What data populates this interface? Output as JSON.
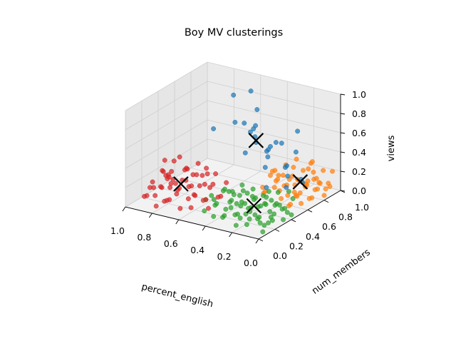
{
  "chart_data": {
    "type": "scatter",
    "projection": "3d",
    "title": "Boy MV clusterings",
    "xlabel": "percent_english",
    "ylabel": "num_members",
    "zlabel": "views",
    "xlim": [
      0.0,
      1.0
    ],
    "ylim": [
      0.0,
      1.0
    ],
    "zlim": [
      0.0,
      1.0
    ],
    "x_ticks": [
      "0.0",
      "0.2",
      "0.4",
      "0.6",
      "0.8",
      "1.0"
    ],
    "y_ticks": [
      "0.0",
      "0.2",
      "0.4",
      "0.6",
      "0.8",
      "1.0"
    ],
    "z_ticks": [
      "0.0",
      "0.2",
      "0.4",
      "0.6",
      "0.8",
      "1.0"
    ],
    "grid": true,
    "legend": "none",
    "series": [
      {
        "color": "#1f77b4",
        "points": [
          [
            0.55,
            0.8,
            0.95
          ],
          [
            0.35,
            0.55,
            0.95
          ],
          [
            0.3,
            0.45,
            0.85
          ],
          [
            0.65,
            0.75,
            0.9
          ],
          [
            0.2,
            0.8,
            0.65
          ],
          [
            0.4,
            0.55,
            0.7
          ],
          [
            0.7,
            0.85,
            0.55
          ],
          [
            0.5,
            0.75,
            0.6
          ],
          [
            0.3,
            0.7,
            0.55
          ],
          [
            0.6,
            0.8,
            0.6
          ],
          [
            0.8,
            0.75,
            0.5
          ],
          [
            0.25,
            0.55,
            0.6
          ],
          [
            0.45,
            0.7,
            0.5
          ],
          [
            0.35,
            0.85,
            0.45
          ],
          [
            0.15,
            0.7,
            0.5
          ],
          [
            0.55,
            0.85,
            0.45
          ],
          [
            0.2,
            0.65,
            0.35
          ],
          [
            0.5,
            0.65,
            0.4
          ],
          [
            0.4,
            0.75,
            0.4
          ],
          [
            0.3,
            0.6,
            0.45
          ],
          [
            0.15,
            0.6,
            0.3
          ],
          [
            0.45,
            0.85,
            0.35
          ],
          [
            0.25,
            0.75,
            0.3
          ],
          [
            0.35,
            0.65,
            0.3
          ],
          [
            0.1,
            0.7,
            0.2
          ],
          [
            0.1,
            0.5,
            0.25
          ],
          [
            0.25,
            0.5,
            0.2
          ],
          [
            0.05,
            0.6,
            0.3
          ]
        ]
      },
      {
        "color": "#ff7f0e",
        "points": [
          [
            0.05,
            0.9,
            0.05
          ],
          [
            0.05,
            0.8,
            0.1
          ],
          [
            0.1,
            0.85,
            0.05
          ],
          [
            0.15,
            0.95,
            0.1
          ],
          [
            0.05,
            0.7,
            0.05
          ],
          [
            0.1,
            0.75,
            0.15
          ],
          [
            0.2,
            0.9,
            0.05
          ],
          [
            0.0,
            0.65,
            0.1
          ],
          [
            0.05,
            0.6,
            0.05
          ],
          [
            0.15,
            0.7,
            0.05
          ],
          [
            0.2,
            0.8,
            0.15
          ],
          [
            0.1,
            0.95,
            0.2
          ],
          [
            0.25,
            0.85,
            0.05
          ],
          [
            0.0,
            0.85,
            0.15
          ],
          [
            0.05,
            0.95,
            0.05
          ],
          [
            0.15,
            0.6,
            0.1
          ],
          [
            0.2,
            0.7,
            0.2
          ],
          [
            0.25,
            0.75,
            0.1
          ],
          [
            0.1,
            0.65,
            0.25
          ],
          [
            0.0,
            0.75,
            0.2
          ],
          [
            0.3,
            0.9,
            0.1
          ],
          [
            0.05,
            0.55,
            0.15
          ],
          [
            0.15,
            0.85,
            0.25
          ],
          [
            0.25,
            0.95,
            0.15
          ],
          [
            0.3,
            0.8,
            0.05
          ],
          [
            0.2,
            0.6,
            0.05
          ],
          [
            0.1,
            0.55,
            0.05
          ],
          [
            0.0,
            0.9,
            0.25
          ],
          [
            0.05,
            0.75,
            0.3
          ],
          [
            0.35,
            0.9,
            0.2
          ],
          [
            0.2,
            1.0,
            0.05
          ],
          [
            0.3,
            0.7,
            0.15
          ],
          [
            0.15,
            0.5,
            0.2
          ],
          [
            0.1,
            0.8,
            0.35
          ],
          [
            0.25,
            0.65,
            0.25
          ],
          [
            0.35,
            0.8,
            0.1
          ],
          [
            0.4,
            0.95,
            0.05
          ],
          [
            0.0,
            0.6,
            0.3
          ],
          [
            0.2,
            0.75,
            0.3
          ],
          [
            0.15,
            0.9,
            0.3
          ],
          [
            0.05,
            0.45,
            0.1
          ],
          [
            0.3,
            0.55,
            0.1
          ],
          [
            0.4,
            0.85,
            0.15
          ],
          [
            0.1,
            0.6,
            0.15
          ],
          [
            0.25,
            0.55,
            0.3
          ],
          [
            0.0,
            0.8,
            0.05
          ],
          [
            0.35,
            0.65,
            0.05
          ],
          [
            0.45,
            0.9,
            0.1
          ],
          [
            0.2,
            0.85,
            0.1
          ],
          [
            0.05,
            0.65,
            0.2
          ],
          [
            0.15,
            0.75,
            0.05
          ],
          [
            0.3,
            0.95,
            0.25
          ],
          [
            0.1,
            0.9,
            0.1
          ],
          [
            0.25,
            0.6,
            0.15
          ],
          [
            0.4,
            0.7,
            0.05
          ]
        ]
      },
      {
        "color": "#2ca02c",
        "points": [
          [
            0.05,
            0.2,
            0.05
          ],
          [
            0.1,
            0.15,
            0.1
          ],
          [
            0.0,
            0.3,
            0.05
          ],
          [
            0.15,
            0.25,
            0.05
          ],
          [
            0.05,
            0.1,
            0.1
          ],
          [
            0.2,
            0.2,
            0.15
          ],
          [
            0.1,
            0.35,
            0.05
          ],
          [
            0.0,
            0.15,
            0.15
          ],
          [
            0.25,
            0.3,
            0.05
          ],
          [
            0.15,
            0.1,
            0.05
          ],
          [
            0.05,
            0.4,
            0.1
          ],
          [
            0.2,
            0.35,
            0.1
          ],
          [
            0.3,
            0.2,
            0.05
          ],
          [
            0.1,
            0.25,
            0.2
          ],
          [
            0.0,
            0.05,
            0.05
          ],
          [
            0.25,
            0.15,
            0.1
          ],
          [
            0.35,
            0.3,
            0.1
          ],
          [
            0.15,
            0.4,
            0.15
          ],
          [
            0.05,
            0.3,
            0.2
          ],
          [
            0.2,
            0.05,
            0.05
          ],
          [
            0.3,
            0.35,
            0.2
          ],
          [
            0.4,
            0.25,
            0.05
          ],
          [
            0.1,
            0.45,
            0.05
          ],
          [
            0.35,
            0.15,
            0.05
          ],
          [
            0.25,
            0.4,
            0.05
          ],
          [
            0.0,
            0.2,
            0.25
          ],
          [
            0.15,
            0.3,
            0.25
          ],
          [
            0.4,
            0.35,
            0.15
          ],
          [
            0.45,
            0.2,
            0.1
          ],
          [
            0.05,
            0.5,
            0.15
          ],
          [
            0.3,
            0.45,
            0.1
          ],
          [
            0.2,
            0.25,
            0.25
          ],
          [
            0.5,
            0.3,
            0.05
          ],
          [
            0.1,
            0.05,
            0.15
          ],
          [
            0.35,
            0.4,
            0.05
          ],
          [
            0.25,
            0.5,
            0.1
          ],
          [
            0.45,
            0.4,
            0.05
          ],
          [
            0.0,
            0.35,
            0.1
          ],
          [
            0.15,
            0.15,
            0.2
          ],
          [
            0.4,
            0.1,
            0.05
          ],
          [
            0.2,
            0.45,
            0.2
          ],
          [
            0.3,
            0.05,
            0.1
          ],
          [
            0.5,
            0.45,
            0.1
          ],
          [
            0.05,
            0.25,
            0.05
          ],
          [
            0.35,
            0.5,
            0.15
          ],
          [
            0.25,
            0.2,
            0.2
          ],
          [
            0.45,
            0.3,
            0.2
          ],
          [
            0.1,
            0.4,
            0.25
          ],
          [
            0.55,
            0.35,
            0.05
          ],
          [
            0.3,
            0.3,
            0.25
          ],
          [
            0.2,
            0.1,
            0.1
          ],
          [
            0.4,
            0.45,
            0.2
          ],
          [
            0.15,
            0.5,
            0.05
          ],
          [
            0.5,
            0.15,
            0.05
          ],
          [
            0.05,
            0.45,
            0.25
          ],
          [
            0.35,
            0.25,
            0.25
          ],
          [
            0.25,
            0.35,
            0.15
          ],
          [
            0.55,
            0.25,
            0.1
          ],
          [
            0.45,
            0.5,
            0.05
          ],
          [
            0.0,
            0.4,
            0.05
          ],
          [
            0.3,
            0.15,
            0.15
          ],
          [
            0.6,
            0.4,
            0.05
          ],
          [
            0.1,
            0.3,
            0.1
          ],
          [
            0.2,
            0.4,
            0.1
          ],
          [
            0.4,
            0.3,
            0.1
          ],
          [
            0.15,
            0.2,
            0.1
          ],
          [
            0.05,
            0.15,
            0.05
          ],
          [
            0.35,
            0.35,
            0.05
          ],
          [
            0.25,
            0.25,
            0.05
          ],
          [
            0.5,
            0.4,
            0.15
          ]
        ]
      },
      {
        "color": "#d62728",
        "points": [
          [
            0.9,
            0.2,
            0.05
          ],
          [
            0.85,
            0.3,
            0.1
          ],
          [
            0.95,
            0.35,
            0.05
          ],
          [
            0.8,
            0.15,
            0.05
          ],
          [
            0.75,
            0.25,
            0.15
          ],
          [
            0.9,
            0.4,
            0.2
          ],
          [
            0.7,
            0.35,
            0.05
          ],
          [
            0.85,
            0.45,
            0.1
          ],
          [
            0.65,
            0.2,
            0.1
          ],
          [
            0.8,
            0.4,
            0.25
          ],
          [
            0.95,
            0.25,
            0.15
          ],
          [
            0.7,
            0.45,
            0.2
          ],
          [
            0.6,
            0.3,
            0.05
          ],
          [
            0.75,
            0.5,
            0.05
          ],
          [
            0.85,
            0.1,
            0.2
          ],
          [
            0.65,
            0.4,
            0.15
          ],
          [
            0.9,
            0.5,
            0.3
          ],
          [
            0.55,
            0.25,
            0.1
          ],
          [
            0.8,
            0.3,
            0.05
          ],
          [
            0.7,
            0.15,
            0.2
          ],
          [
            0.95,
            0.45,
            0.1
          ],
          [
            0.6,
            0.45,
            0.25
          ],
          [
            0.75,
            0.35,
            0.3
          ],
          [
            0.85,
            0.2,
            0.15
          ],
          [
            0.55,
            0.4,
            0.05
          ],
          [
            0.65,
            0.5,
            0.1
          ],
          [
            0.9,
            0.3,
            0.25
          ],
          [
            0.8,
            0.5,
            0.15
          ],
          [
            1.0,
            0.3,
            0.05
          ],
          [
            0.7,
            0.25,
            0.25
          ],
          [
            0.6,
            0.15,
            0.05
          ],
          [
            0.75,
            0.1,
            0.1
          ],
          [
            0.85,
            0.35,
            0.35
          ],
          [
            0.95,
            0.15,
            0.05
          ],
          [
            0.65,
            0.3,
            0.3
          ],
          [
            0.5,
            0.35,
            0.1
          ],
          [
            0.9,
            0.1,
            0.1
          ],
          [
            0.8,
            0.45,
            0.05
          ],
          [
            0.7,
            0.5,
            0.25
          ],
          [
            0.55,
            0.5,
            0.15
          ],
          [
            1.0,
            0.45,
            0.15
          ],
          [
            0.75,
            0.4,
            0.1
          ],
          [
            0.85,
            0.25,
            0.25
          ],
          [
            0.6,
            0.2,
            0.15
          ],
          [
            0.95,
            0.4,
            0.3
          ],
          [
            0.65,
            0.1,
            0.05
          ],
          [
            0.8,
            0.2,
            0.3
          ],
          [
            0.7,
            0.4,
            0.35
          ],
          [
            0.9,
            0.45,
            0.05
          ],
          [
            0.5,
            0.2,
            0.05
          ],
          [
            0.85,
            0.5,
            0.2
          ],
          [
            0.75,
            0.15,
            0.25
          ],
          [
            0.55,
            0.3,
            0.2
          ],
          [
            0.95,
            0.5,
            0.05
          ],
          [
            0.6,
            0.35,
            0.3
          ],
          [
            0.8,
            0.05,
            0.05
          ],
          [
            0.7,
            0.05,
            0.15
          ],
          [
            0.9,
            0.35,
            0.15
          ]
        ]
      }
    ],
    "centroids": {
      "marker": "x",
      "color": "#000000",
      "points": [
        [
          0.45,
          0.7,
          0.52
        ],
        [
          0.18,
          0.8,
          0.13
        ],
        [
          0.22,
          0.3,
          0.12
        ],
        [
          0.78,
          0.32,
          0.15
        ]
      ]
    }
  }
}
